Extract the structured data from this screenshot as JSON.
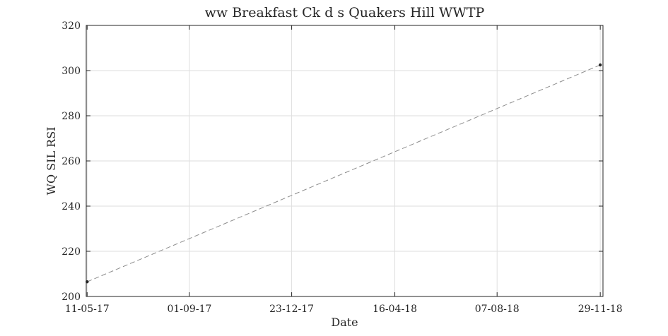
{
  "chart_data": {
    "type": "line",
    "title": "ww Breakfast Ck d s Quakers Hill WWTP",
    "xlabel": "Date",
    "ylabel": "WQ SIL RSI",
    "x_ticks": [
      "11-05-17",
      "01-09-17",
      "23-12-17",
      "16-04-18",
      "07-08-18",
      "29-11-18"
    ],
    "y_ticks": [
      "200",
      "220",
      "240",
      "260",
      "280",
      "300",
      "320"
    ],
    "xlim": [
      "2017-05-10",
      "2018-12-02"
    ],
    "ylim": [
      200,
      320
    ],
    "grid": true,
    "series": [
      {
        "x": [
          "2017-05-11",
          "2018-11-29"
        ],
        "y": [
          206.5,
          302.5
        ],
        "line_style": "dashed",
        "line_color": "#8c8c8c",
        "marker_color": "#262626"
      }
    ]
  }
}
